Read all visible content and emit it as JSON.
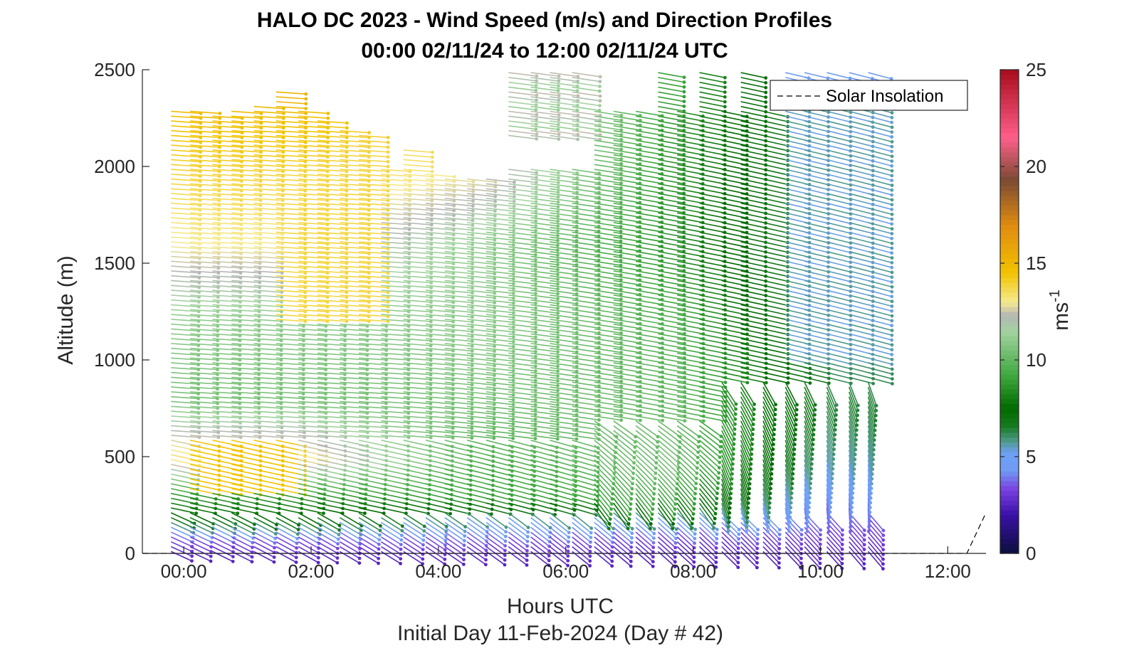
{
  "chart_data": {
    "type": "wind-barb-profile",
    "title": "HALO DC 2023 - Wind Speed (m/s) and Direction Profiles",
    "subtitle": "00:00 02/11/24 to 12:00 02/11/24  UTC",
    "xlabel": "Hours UTC",
    "xlabel2": "Initial Day 11-Feb-2024 (Day # 42)",
    "ylabel": "Altitude (m)",
    "xlim": [
      -0.65,
      12.6
    ],
    "ylim": [
      0,
      2500
    ],
    "x_ticks": [
      0,
      2,
      4,
      6,
      8,
      10,
      12
    ],
    "x_tick_labels": [
      "00:00",
      "02:00",
      "04:00",
      "06:00",
      "08:00",
      "10:00",
      "12:00"
    ],
    "y_ticks": [
      0,
      500,
      1000,
      1500,
      2000,
      2500
    ],
    "y_tick_labels": [
      "0",
      "500",
      "1000",
      "1500",
      "2000",
      "2500"
    ],
    "colorbar": {
      "label": "ms",
      "label_exponent": "-1",
      "range": [
        0,
        25
      ],
      "ticks": [
        0,
        5,
        10,
        15,
        20,
        25
      ],
      "tick_labels": [
        "0",
        "5",
        "10",
        "15",
        "20",
        "25"
      ],
      "stops": [
        {
          "v": 0,
          "c": "#0b0f3b"
        },
        {
          "v": 2,
          "c": "#3a10a8"
        },
        {
          "v": 3.3,
          "c": "#7a3fe0"
        },
        {
          "v": 4.3,
          "c": "#6f9cf5"
        },
        {
          "v": 5.2,
          "c": "#6ea0f7"
        },
        {
          "v": 5.8,
          "c": "#4f9a8c"
        },
        {
          "v": 6.6,
          "c": "#167a1e"
        },
        {
          "v": 7.5,
          "c": "#006a00"
        },
        {
          "v": 9.2,
          "c": "#3fa83f"
        },
        {
          "v": 11.5,
          "c": "#a3d3a0"
        },
        {
          "v": 12.3,
          "c": "#b5b5b5"
        },
        {
          "v": 13,
          "c": "#f5eb90"
        },
        {
          "v": 14.5,
          "c": "#f2c300"
        },
        {
          "v": 17,
          "c": "#e08a10"
        },
        {
          "v": 19.3,
          "c": "#7a4a32"
        },
        {
          "v": 21.5,
          "c": "#ff5f8a"
        },
        {
          "v": 25,
          "c": "#a80c1c"
        }
      ]
    },
    "legend": {
      "entries": [
        "Solar Insolation"
      ],
      "placement": "top-right",
      "style": "dashed-black"
    },
    "solar_insolation": {
      "x": [
        -0.65,
        12.3,
        12.6
      ],
      "y": [
        0,
        0,
        210
      ]
    },
    "profile_times_h": [
      -0.2,
      0.1,
      0.45,
      0.75,
      1.1,
      1.45,
      1.8,
      2.1,
      2.45,
      2.75,
      3.1,
      3.45,
      3.8,
      4.1,
      4.45,
      4.75,
      5.1,
      5.45,
      5.75,
      6.1,
      6.45,
      6.75,
      7.1,
      7.45,
      7.75,
      8.1,
      8.45,
      8.75,
      9.1,
      9.45,
      9.75,
      10.1,
      10.45,
      10.75
    ],
    "profile_top_altitude_m": [
      2300,
      2290,
      2260,
      2290,
      2330,
      2400,
      2300,
      2250,
      2200,
      2180,
      2000,
      2090,
      1980,
      1950,
      1950,
      1950,
      2500,
      2500,
      2500,
      2500,
      2300,
      2300,
      2500,
      2500,
      2500,
      2500,
      2500,
      2500,
      2500,
      2500,
      2500,
      2500,
      2500,
      2500
    ],
    "barb_vertical_spacing_m": 25,
    "wind_speed_profile": {
      "altitude_m": [
        0,
        100,
        200,
        300,
        500,
        800,
        1200,
        1600,
        2000,
        2500
      ],
      "speed_ms_by_period": {
        "00:00-03:00": [
          2.5,
          3.5,
          7.5,
          8.5,
          13.5,
          10.5,
          11,
          13,
          14,
          15.5
        ],
        "03:00-06:00": [
          2.5,
          3.5,
          5.5,
          9,
          9.5,
          10.5,
          11,
          11,
          13,
          14
        ],
        "06:00-09:00": [
          2.5,
          3,
          5.5,
          9,
          10.5,
          10,
          9.5,
          8.5,
          8.5,
          9
        ],
        "09:00-11:00": [
          2.5,
          3,
          3.5,
          4,
          5.5,
          6.5,
          5.5,
          5.5,
          6,
          5.5
        ]
      }
    }
  }
}
